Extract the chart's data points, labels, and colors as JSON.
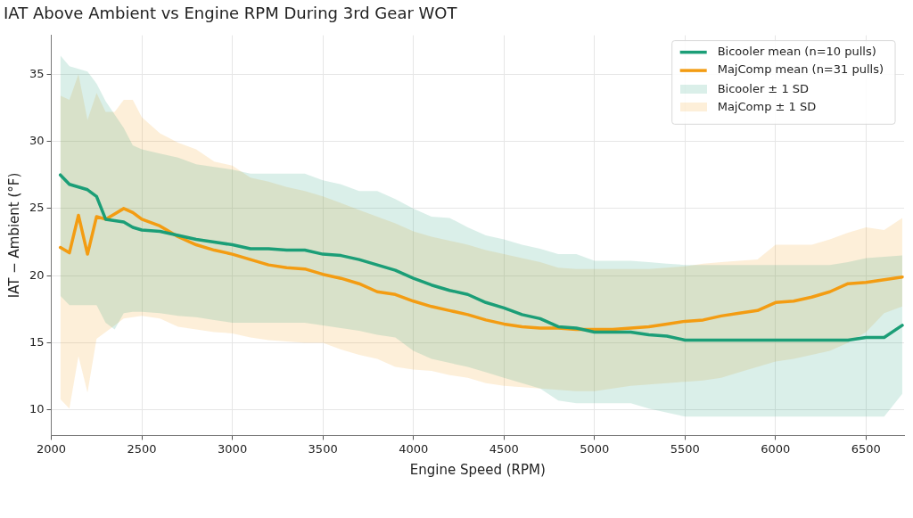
{
  "chart_data": {
    "type": "line",
    "title": "IAT Above Ambient vs Engine RPM During 3rd Gear WOT",
    "xlabel": "Engine Speed (RPM)",
    "ylabel": "IAT − Ambient (°F)",
    "x": [
      2050,
      2100,
      2150,
      2200,
      2250,
      2300,
      2350,
      2400,
      2450,
      2500,
      2600,
      2700,
      2800,
      2900,
      3000,
      3100,
      3200,
      3300,
      3400,
      3500,
      3600,
      3700,
      3800,
      3900,
      4000,
      4100,
      4200,
      4300,
      4400,
      4500,
      4600,
      4700,
      4800,
      4900,
      5000,
      5100,
      5200,
      5300,
      5400,
      5500,
      5600,
      5700,
      5800,
      5900,
      6000,
      6100,
      6200,
      6300,
      6400,
      6500,
      6600,
      6700
    ],
    "series": [
      {
        "name": "Bicooler mean (n=10 pulls)",
        "color": "#1b9e77",
        "values": [
          27.5,
          26.8,
          26.6,
          26.4,
          25.9,
          24.2,
          24.1,
          24.0,
          23.6,
          23.4,
          23.3,
          23.0,
          22.7,
          22.5,
          22.3,
          22.0,
          22.0,
          21.9,
          21.9,
          21.6,
          21.5,
          21.2,
          20.8,
          20.4,
          19.8,
          19.3,
          18.9,
          18.6,
          18.0,
          17.6,
          17.1,
          16.8,
          16.2,
          16.1,
          15.8,
          15.8,
          15.8,
          15.6,
          15.5,
          15.2,
          15.2,
          15.2,
          15.2,
          15.2,
          15.2,
          15.2,
          15.2,
          15.2,
          15.2,
          15.4,
          15.4,
          16.3
        ],
        "lower": [
          18.5,
          17.8,
          17.8,
          17.8,
          17.8,
          16.5,
          16.0,
          17.2,
          17.3,
          17.3,
          17.2,
          17.0,
          16.9,
          16.7,
          16.5,
          16.5,
          16.5,
          16.5,
          16.5,
          16.3,
          16.1,
          15.9,
          15.6,
          15.4,
          14.4,
          13.8,
          13.5,
          13.2,
          12.8,
          12.4,
          12.0,
          11.6,
          10.7,
          10.5,
          10.5,
          10.5,
          10.5,
          10.1,
          9.8,
          9.5,
          9.5,
          9.5,
          9.5,
          9.5,
          9.5,
          9.5,
          9.5,
          9.5,
          9.5,
          9.5,
          9.5,
          11.2
        ],
        "upper": [
          36.4,
          35.6,
          35.4,
          35.2,
          34.3,
          33.0,
          32.0,
          31.0,
          29.7,
          29.4,
          29.1,
          28.8,
          28.3,
          28.1,
          27.9,
          27.6,
          27.6,
          27.6,
          27.6,
          27.1,
          26.8,
          26.3,
          26.3,
          25.7,
          25.0,
          24.4,
          24.3,
          23.6,
          23.0,
          22.7,
          22.3,
          22.0,
          21.6,
          21.6,
          21.1,
          21.1,
          21.1,
          21.0,
          20.9,
          20.8,
          20.8,
          20.8,
          20.8,
          20.8,
          20.8,
          20.8,
          20.8,
          20.8,
          21.0,
          21.3,
          21.4,
          21.5
        ]
      },
      {
        "name": "MajComp mean (n=31 pulls)",
        "color": "#f39c12",
        "values": [
          22.1,
          21.7,
          24.5,
          21.6,
          24.4,
          24.2,
          24.6,
          25.0,
          24.7,
          24.2,
          23.7,
          22.9,
          22.3,
          21.9,
          21.6,
          21.2,
          20.8,
          20.6,
          20.5,
          20.1,
          19.8,
          19.4,
          18.8,
          18.6,
          18.1,
          17.7,
          17.4,
          17.1,
          16.7,
          16.4,
          16.2,
          16.1,
          16.1,
          16.0,
          16.0,
          16.0,
          16.1,
          16.2,
          16.4,
          16.6,
          16.7,
          17.0,
          17.2,
          17.4,
          18.0,
          18.1,
          18.4,
          18.8,
          19.4,
          19.5,
          19.7,
          19.9
        ],
        "lower": [
          10.8,
          10.1,
          14.0,
          11.3,
          15.3,
          15.8,
          16.3,
          16.8,
          16.9,
          17.0,
          16.8,
          16.2,
          16.0,
          15.8,
          15.7,
          15.4,
          15.2,
          15.1,
          15.0,
          15.0,
          14.5,
          14.1,
          13.8,
          13.2,
          13.0,
          12.9,
          12.6,
          12.4,
          12.0,
          11.8,
          11.7,
          11.6,
          11.5,
          11.4,
          11.4,
          11.6,
          11.8,
          11.9,
          12.0,
          12.1,
          12.2,
          12.4,
          12.8,
          13.2,
          13.6,
          13.8,
          14.1,
          14.4,
          15.0,
          15.8,
          17.2,
          17.7
        ],
        "upper": [
          33.4,
          33.1,
          35.0,
          31.6,
          33.6,
          32.2,
          32.2,
          33.1,
          33.1,
          31.8,
          30.6,
          29.9,
          29.4,
          28.5,
          28.2,
          27.3,
          27.0,
          26.6,
          26.3,
          25.9,
          25.4,
          24.9,
          24.4,
          23.9,
          23.3,
          22.9,
          22.6,
          22.3,
          21.9,
          21.6,
          21.3,
          21.0,
          20.6,
          20.5,
          20.5,
          20.5,
          20.5,
          20.5,
          20.6,
          20.7,
          20.9,
          21.0,
          21.1,
          21.2,
          22.3,
          22.3,
          22.3,
          22.7,
          23.2,
          23.6,
          23.4,
          24.3
        ]
      }
    ],
    "annotations": [
      "Bicooler ± 1 SD",
      "MajComp ± 1 SD"
    ],
    "xlim": [
      2000,
      6710
    ],
    "ylim": [
      8.1,
      37.9
    ],
    "xticks": [
      2000,
      2500,
      3000,
      3500,
      4000,
      4500,
      5000,
      5500,
      6000,
      6500
    ],
    "yticks": [
      10,
      15,
      20,
      25,
      30,
      35
    ],
    "grid": true,
    "legend": "top right",
    "marker": "none",
    "line_style": "solid"
  }
}
